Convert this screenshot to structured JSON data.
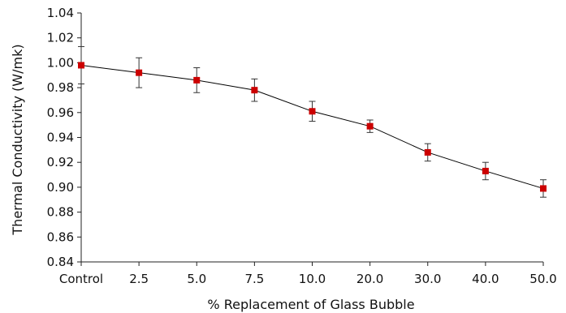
{
  "chart_data": {
    "type": "line",
    "title": "",
    "xlabel": "% Replacement of Glass Bubble",
    "ylabel": "Thermal Conductivity (W/mk)",
    "categories": [
      "Control",
      "2.5",
      "5.0",
      "7.5",
      "10.0",
      "20.0",
      "30.0",
      "40.0",
      "50.0"
    ],
    "series": [
      {
        "values": [
          0.998,
          0.992,
          0.986,
          0.978,
          0.961,
          0.949,
          0.928,
          0.913,
          0.899
        ],
        "errors": [
          0.015,
          0.012,
          0.01,
          0.009,
          0.008,
          0.005,
          0.007,
          0.007,
          0.007
        ],
        "color": "#cc0000",
        "line_color": "#000000",
        "marker": "square"
      }
    ],
    "ylim": [
      0.84,
      1.04
    ],
    "yticks": [
      "0.84",
      "0.86",
      "0.88",
      "0.90",
      "0.92",
      "0.94",
      "0.96",
      "0.98",
      "1.00",
      "1.02",
      "1.04"
    ],
    "grid": false,
    "legend": "none"
  }
}
